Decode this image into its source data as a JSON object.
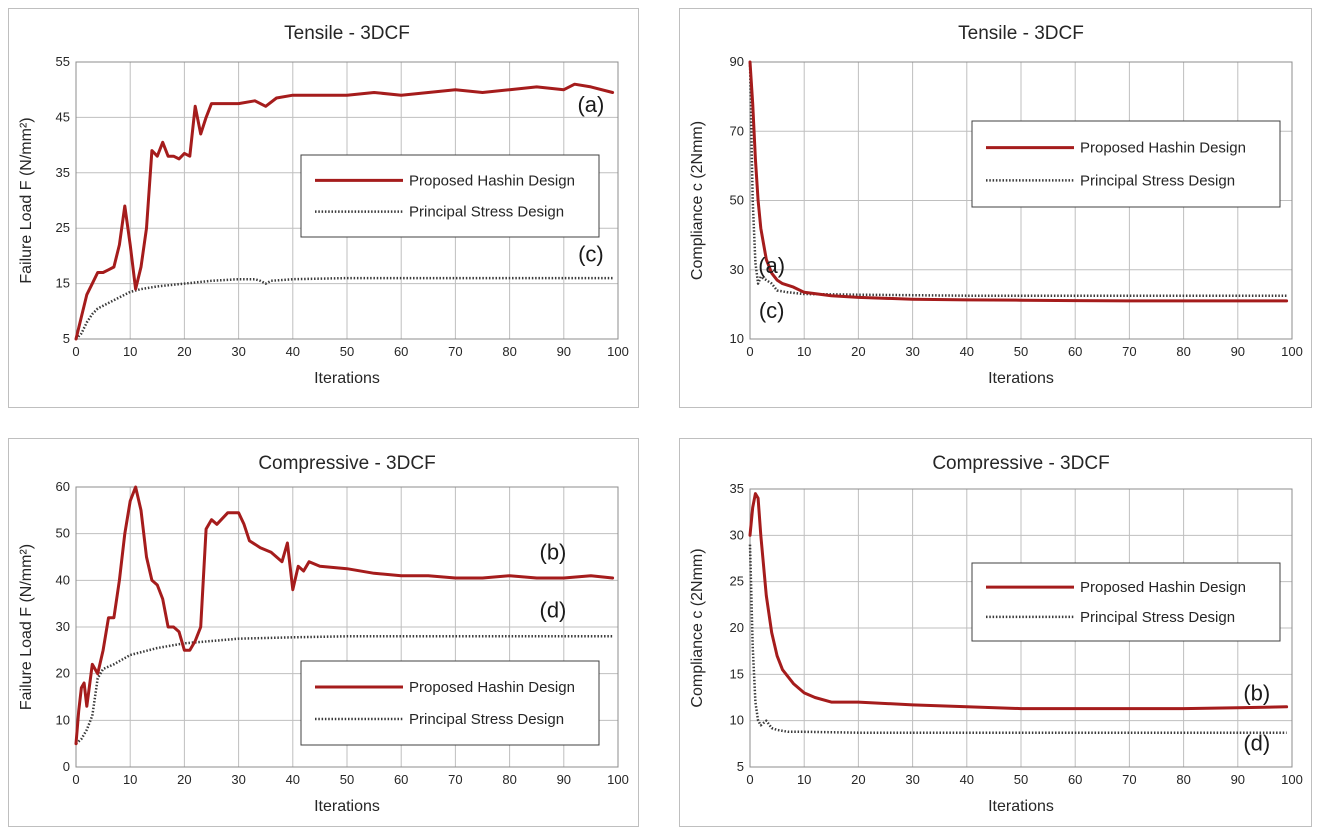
{
  "colors": {
    "hashin": "#a51c1c",
    "principal": "#3a3a3a",
    "grid": "#bfbfbf"
  },
  "chart_data": [
    {
      "type": "line",
      "title": "Tensile - 3DCF",
      "xlabel": "Iterations",
      "ylabel": "Failure Load F (N/mm²)",
      "xlim": [
        0,
        100
      ],
      "ylim": [
        5,
        55
      ],
      "xticks": [
        0,
        10,
        20,
        30,
        40,
        50,
        60,
        70,
        80,
        90,
        100
      ],
      "yticks": [
        5,
        15,
        25,
        35,
        45,
        55
      ],
      "grid": true,
      "legend_position": "center-right",
      "series": [
        {
          "name": "Proposed Hashin Design",
          "style": "solid",
          "x": [
            0,
            1,
            2,
            3,
            4,
            5,
            6,
            7,
            8,
            9,
            10,
            11,
            12,
            13,
            14,
            15,
            16,
            17,
            18,
            19,
            20,
            21,
            22,
            23,
            24,
            25,
            27,
            30,
            33,
            35,
            37,
            40,
            45,
            50,
            55,
            60,
            65,
            70,
            75,
            80,
            85,
            90,
            92,
            95,
            99
          ],
          "y": [
            5,
            9,
            13,
            15,
            17,
            17,
            17.5,
            18,
            22,
            29,
            22,
            14,
            18,
            25,
            39,
            38,
            40.5,
            38,
            38,
            37.5,
            38.5,
            38,
            47,
            42,
            45,
            47.5,
            47.5,
            47.5,
            48,
            47,
            48.5,
            49,
            49,
            49,
            49.5,
            49,
            49.5,
            50,
            49.5,
            50,
            50.5,
            50,
            51,
            50.5,
            49.5
          ]
        },
        {
          "name": "Principal Stress Design",
          "style": "dotted",
          "x": [
            0,
            1,
            2,
            3,
            4,
            5,
            7,
            10,
            12,
            15,
            20,
            25,
            30,
            33,
            34,
            35,
            36,
            40,
            50,
            60,
            70,
            80,
            90,
            99
          ],
          "y": [
            5,
            6,
            8,
            9.5,
            10.5,
            11,
            12,
            13.5,
            14,
            14.5,
            15,
            15.5,
            15.8,
            15.8,
            15.5,
            15,
            15.5,
            15.8,
            16,
            16,
            16,
            16,
            16,
            16
          ]
        }
      ],
      "annotations": [
        {
          "text": "(a)",
          "x": 95,
          "y": 46
        },
        {
          "text": "(c)",
          "x": 95,
          "y": 19
        }
      ]
    },
    {
      "type": "line",
      "title": "Tensile - 3DCF",
      "xlabel": "Iterations",
      "ylabel": "Compliance c (2Nmm)",
      "xlim": [
        0,
        100
      ],
      "ylim": [
        10,
        90
      ],
      "xticks": [
        0,
        10,
        20,
        30,
        40,
        50,
        60,
        70,
        80,
        90,
        100
      ],
      "yticks": [
        10,
        30,
        50,
        70,
        90
      ],
      "grid": true,
      "legend_position": "upper-right",
      "series": [
        {
          "name": "Proposed Hashin Design",
          "style": "solid",
          "x": [
            0,
            0.5,
            1,
            1.5,
            2,
            3,
            4,
            5,
            6,
            8,
            10,
            15,
            20,
            30,
            40,
            50,
            60,
            70,
            80,
            90,
            99
          ],
          "y": [
            90,
            78,
            62,
            50,
            42,
            33,
            29,
            27,
            26,
            25,
            23.5,
            22.5,
            22,
            21.5,
            21.3,
            21.2,
            21.1,
            21,
            21,
            21,
            21
          ]
        },
        {
          "name": "Principal Stress Design",
          "style": "dotted",
          "x": [
            0,
            0.5,
            1,
            1.5,
            2,
            3,
            4,
            5,
            7,
            10,
            20,
            40,
            60,
            80,
            99
          ],
          "y": [
            90,
            50,
            32,
            26,
            28,
            27,
            26,
            24,
            23.5,
            23,
            22.8,
            22.5,
            22.5,
            22.5,
            22.5
          ]
        }
      ],
      "annotations": [
        {
          "text": "(a)",
          "x": 4,
          "y": 29
        },
        {
          "text": "(c)",
          "x": 4,
          "y": 16
        }
      ]
    },
    {
      "type": "line",
      "title": "Compressive - 3DCF",
      "xlabel": "Iterations",
      "ylabel": "Failure Load F (N/mm²)",
      "xlim": [
        0,
        100
      ],
      "ylim": [
        0,
        60
      ],
      "xticks": [
        0,
        10,
        20,
        30,
        40,
        50,
        60,
        70,
        80,
        90,
        100
      ],
      "yticks": [
        0,
        10,
        20,
        30,
        40,
        50,
        60
      ],
      "grid": true,
      "legend_position": "lower-right",
      "series": [
        {
          "name": "Proposed Hashin Design",
          "style": "solid",
          "x": [
            0,
            0.5,
            1,
            1.5,
            2,
            3,
            4,
            5,
            6,
            7,
            8,
            9,
            10,
            11,
            12,
            13,
            14,
            15,
            16,
            17,
            18,
            19,
            20,
            21,
            22,
            23,
            24,
            25,
            26,
            28,
            30,
            31,
            32,
            34,
            36,
            38,
            39,
            40,
            41,
            42,
            43,
            45,
            50,
            55,
            60,
            65,
            70,
            75,
            80,
            85,
            90,
            95,
            99
          ],
          "y": [
            5,
            12,
            17,
            18,
            13,
            22,
            20,
            25,
            32,
            32,
            40,
            50,
            57,
            60,
            55,
            45,
            40,
            39,
            36,
            30,
            30,
            29,
            25,
            25,
            27,
            30,
            51,
            53,
            52,
            54.5,
            54.5,
            52,
            48.5,
            47,
            46,
            44,
            48,
            38,
            43,
            42,
            44,
            43,
            42.5,
            41.5,
            41,
            41,
            40.5,
            40.5,
            41,
            40.5,
            40.5,
            41,
            40.5
          ]
        },
        {
          "name": "Principal Stress Design",
          "style": "dotted",
          "x": [
            0,
            1,
            2,
            3,
            4,
            5,
            7,
            10,
            15,
            20,
            25,
            30,
            40,
            50,
            60,
            70,
            80,
            90,
            99
          ],
          "y": [
            5,
            6,
            8,
            11,
            19,
            21,
            22,
            24,
            25.5,
            26.5,
            27,
            27.5,
            27.8,
            28,
            28,
            28,
            28,
            28,
            28
          ]
        }
      ],
      "annotations": [
        {
          "text": "(b)",
          "x": 88,
          "y": 44.5
        },
        {
          "text": "(d)",
          "x": 88,
          "y": 32
        }
      ]
    },
    {
      "type": "line",
      "title": "Compressive - 3DCF",
      "xlabel": "Iterations",
      "ylabel": "Compliance c (2Nmm)",
      "xlim": [
        0,
        100
      ],
      "ylim": [
        5,
        35
      ],
      "xticks": [
        0,
        10,
        20,
        30,
        40,
        50,
        60,
        70,
        80,
        90,
        100
      ],
      "yticks": [
        5,
        10,
        15,
        20,
        25,
        30,
        35
      ],
      "grid": true,
      "legend_position": "center-right",
      "series": [
        {
          "name": "Proposed Hashin Design",
          "style": "solid",
          "x": [
            0,
            0.5,
            1,
            1.5,
            2,
            3,
            4,
            5,
            6,
            8,
            10,
            12,
            15,
            20,
            30,
            40,
            50,
            60,
            70,
            80,
            90,
            99
          ],
          "y": [
            30,
            33,
            34.5,
            34,
            30,
            23.5,
            19.5,
            17,
            15.5,
            14,
            13,
            12.5,
            12,
            12,
            11.7,
            11.5,
            11.3,
            11.3,
            11.3,
            11.3,
            11.4,
            11.5
          ]
        },
        {
          "name": "Principal Stress Design",
          "style": "dotted",
          "x": [
            0,
            0.5,
            1,
            1.5,
            2,
            3,
            4,
            5,
            7,
            10,
            20,
            40,
            60,
            80,
            99
          ],
          "y": [
            29,
            18,
            12,
            10,
            9.5,
            10,
            9.2,
            9,
            8.8,
            8.8,
            8.7,
            8.7,
            8.7,
            8.7,
            8.7
          ]
        }
      ],
      "annotations": [
        {
          "text": "(b)",
          "x": 93.5,
          "y": 12.2
        },
        {
          "text": "(d)",
          "x": 93.5,
          "y": 6.8
        }
      ]
    }
  ]
}
